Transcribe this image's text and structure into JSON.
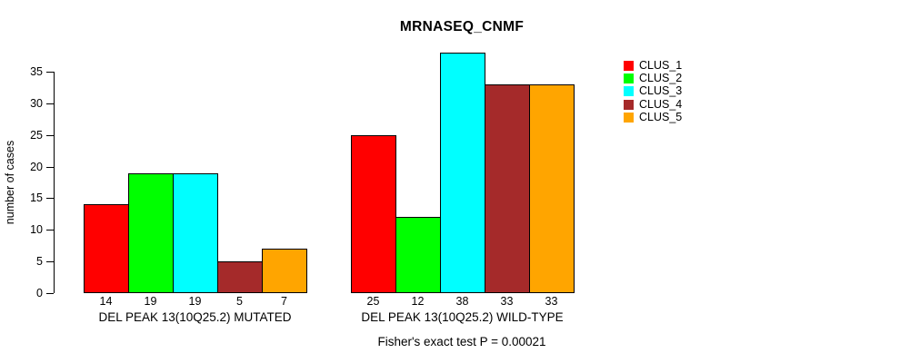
{
  "chart_data": {
    "type": "bar",
    "title": "MRNASEQ_CNMF",
    "ylabel": "number of cases",
    "xlabel": "",
    "ylim": [
      0,
      35
    ],
    "yticks": [
      0,
      5,
      10,
      15,
      20,
      25,
      30,
      35
    ],
    "grid": false,
    "legend_position": "right",
    "categories": [
      "DEL PEAK 13(10Q25.2) MUTATED",
      "DEL PEAK 13(10Q25.2) WILD-TYPE"
    ],
    "series": [
      {
        "name": "CLUS_1",
        "color": "#ff0000",
        "values": [
          14,
          25
        ]
      },
      {
        "name": "CLUS_2",
        "color": "#00ff00",
        "values": [
          19,
          12
        ]
      },
      {
        "name": "CLUS_3",
        "color": "#00ffff",
        "values": [
          19,
          38
        ]
      },
      {
        "name": "CLUS_4",
        "color": "#a52a2a",
        "values": [
          5,
          33
        ]
      },
      {
        "name": "CLUS_5",
        "color": "#ffa500",
        "values": [
          7,
          33
        ]
      }
    ],
    "bar_value_labels": true,
    "annotation": "Fisher's exact test P = 0.00021"
  }
}
